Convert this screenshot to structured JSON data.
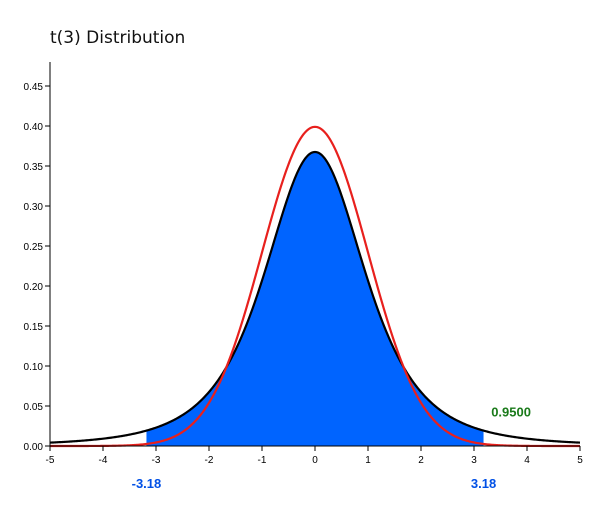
{
  "chart_data": {
    "type": "area",
    "title": "t(3) Distribution",
    "xlabel": "",
    "ylabel": "",
    "xlim": [
      -5,
      5
    ],
    "ylim": [
      0,
      0.48
    ],
    "x_ticks": [
      -5,
      -4,
      -3,
      -2,
      -1,
      0,
      1,
      2,
      3,
      4,
      5
    ],
    "x_tick_labels": [
      "-5",
      "-4",
      "-3",
      "-2",
      "-1",
      "0",
      "1",
      "2",
      "3",
      "4",
      "5"
    ],
    "y_ticks": [
      0.0,
      0.05,
      0.1,
      0.15,
      0.2,
      0.25,
      0.3,
      0.35,
      0.4,
      0.45
    ],
    "y_tick_labels": [
      "0.00",
      "0.05",
      "0.10",
      "0.15",
      "0.20",
      "0.25",
      "0.30",
      "0.35",
      "0.40",
      "0.45"
    ],
    "grid": false,
    "curves": [
      {
        "kind": "t-density",
        "df": 3,
        "color": "#000000"
      },
      {
        "kind": "normal-density",
        "mean": 0,
        "sd": 1,
        "color": "#e8201d"
      }
    ],
    "shaded_region": {
      "from": -3.18,
      "to": 3.18,
      "color": "#0064ff"
    },
    "critical_values": [
      {
        "value": -3.18,
        "label": "-3.18",
        "color": "#0050e6"
      },
      {
        "value": 3.18,
        "label": "3.18",
        "color": "#0050e6"
      }
    ],
    "probability_label": {
      "text": "0.9500",
      "color": "#1a7a1a",
      "x": 3.7,
      "y": 0.037
    }
  }
}
